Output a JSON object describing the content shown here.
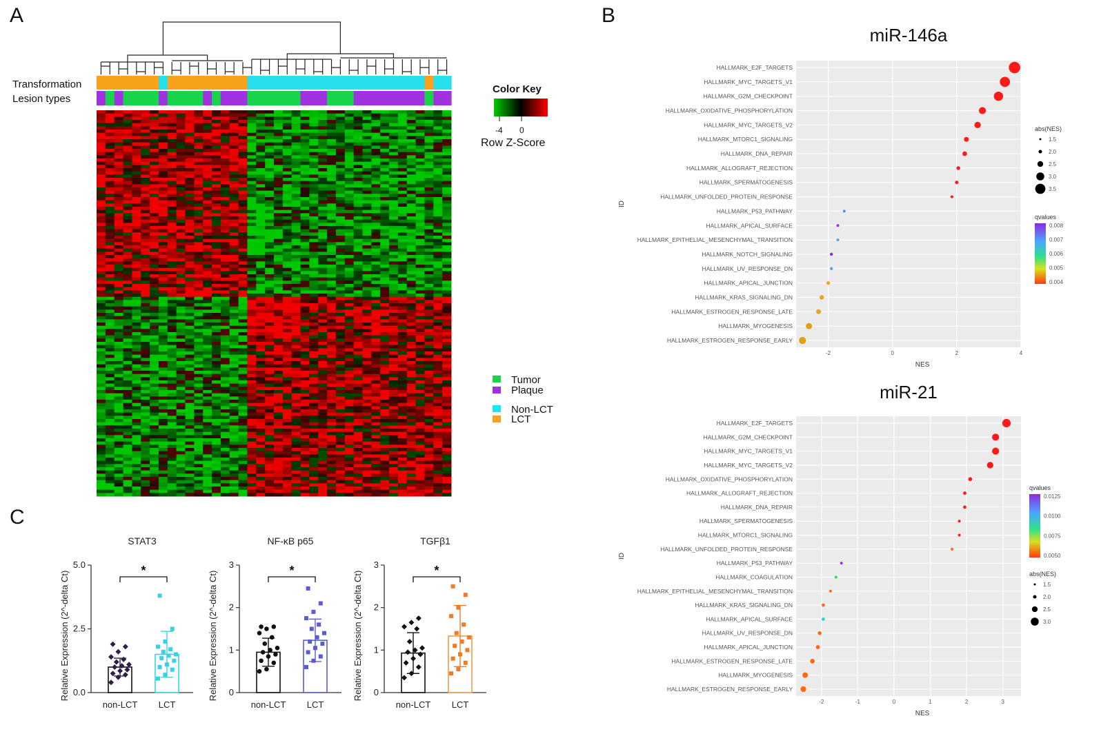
{
  "panels": {
    "a": "A",
    "b": "B",
    "c": "C"
  },
  "colors": {
    "tumor": "#19d44a",
    "plaque": "#a033e0",
    "non_lct": "#27e0ee",
    "lct": "#f7a21a",
    "heat_low": "#00b400",
    "heat_mid": "#000000",
    "heat_high": "#ff0000",
    "bar_stat3": "#36d3e8",
    "bar_nfkb": "#5a5ad8",
    "bar_tgfb": "#f29a45",
    "dots_non_lct": "#2c1d4a",
    "dots_tgfb_lct": "#f07a25"
  },
  "chart_data": [
    {
      "type": "heatmap",
      "title": "",
      "annotation_rows": [
        "Transformation",
        "Lesion types"
      ],
      "color_key": {
        "title": "Color Key",
        "tick_labels": [
          "-4",
          "0"
        ],
        "xlabel": "Row Z-Score"
      },
      "legend": [
        {
          "label": "Tumor",
          "color": "#19d44a"
        },
        {
          "label": "Plaque",
          "color": "#a033e0"
        },
        {
          "label": "Non-LCT",
          "color": "#27e0ee"
        },
        {
          "label": "LCT",
          "color": "#f7a21a"
        }
      ],
      "columns": 40,
      "rows": 120,
      "transformation": [
        "LCT",
        "LCT",
        "LCT",
        "LCT",
        "LCT",
        "LCT",
        "LCT",
        "Non-LCT",
        "LCT",
        "LCT",
        "LCT",
        "LCT",
        "LCT",
        "LCT",
        "LCT",
        "LCT",
        "LCT",
        "Non-LCT",
        "Non-LCT",
        "Non-LCT",
        "Non-LCT",
        "Non-LCT",
        "Non-LCT",
        "Non-LCT",
        "Non-LCT",
        "Non-LCT",
        "Non-LCT",
        "Non-LCT",
        "Non-LCT",
        "Non-LCT",
        "Non-LCT",
        "Non-LCT",
        "Non-LCT",
        "Non-LCT",
        "Non-LCT",
        "Non-LCT",
        "Non-LCT",
        "LCT",
        "Non-LCT",
        "Non-LCT"
      ],
      "lesion_types": [
        "Plaque",
        "Tumor",
        "Plaque",
        "Tumor",
        "Tumor",
        "Tumor",
        "Tumor",
        "Plaque",
        "Tumor",
        "Tumor",
        "Tumor",
        "Tumor",
        "Plaque",
        "Tumor",
        "Plaque",
        "Plaque",
        "Plaque",
        "Tumor",
        "Tumor",
        "Tumor",
        "Tumor",
        "Tumor",
        "Tumor",
        "Plaque",
        "Plaque",
        "Plaque",
        "Tumor",
        "Tumor",
        "Tumor",
        "Plaque",
        "Plaque",
        "Plaque",
        "Plaque",
        "Plaque",
        "Plaque",
        "Plaque",
        "Plaque",
        "Tumor",
        "Plaque",
        "Plaque"
      ]
    },
    {
      "type": "scatter",
      "title": "miR-146a",
      "xlabel": "NES",
      "ylabel": "ID",
      "xlim": [
        -3.0,
        4.0
      ],
      "x_ticks": [
        "-2",
        "0",
        "2",
        "4"
      ],
      "size_legend": {
        "title": "abs(NES)",
        "labels": [
          "1.5",
          "2.0",
          "2.5",
          "3.0",
          "3.5"
        ]
      },
      "color_legend": {
        "title": "qvalues",
        "labels": [
          "0.008",
          "0.007",
          "0.006",
          "0.005",
          "0.004"
        ]
      },
      "categories": [
        "HALLMARK_E2F_TARGETS",
        "HALLMARK_MYC_TARGETS_V1",
        "HALLMARK_G2M_CHECKPOINT",
        "HALLMARK_OXIDATIVE_PHOSPHORYLATION",
        "HALLMARK_MYC_TARGETS_V2",
        "HALLMARK_MTORC1_SIGNALING",
        "HALLMARK_DNA_REPAIR",
        "HALLMARK_ALLOGRAFT_REJECTION",
        "HALLMARK_SPERMATOGENESIS",
        "HALLMARK_UNFOLDED_PROTEIN_RESPONSE",
        "HALLMARK_P53_PATHWAY",
        "HALLMARK_APICAL_SURFACE",
        "HALLMARK_EPITHELIAL_MESENCHYMAL_TRANSITION",
        "HALLMARK_NOTCH_SIGNALING",
        "HALLMARK_UV_RESPONSE_DN",
        "HALLMARK_APICAL_JUNCTION",
        "HALLMARK_KRAS_SIGNALING_DN",
        "HALLMARK_ESTROGEN_RESPONSE_LATE",
        "HALLMARK_MYOGENESIS",
        "HALLMARK_ESTROGEN_RESPONSE_EARLY"
      ],
      "values": [
        3.8,
        3.5,
        3.3,
        2.8,
        2.65,
        2.3,
        2.25,
        2.05,
        2.0,
        1.85,
        -1.5,
        -1.7,
        -1.7,
        -1.9,
        -1.9,
        -2.0,
        -2.2,
        -2.3,
        -2.6,
        -2.8
      ],
      "colors": [
        "#ff1a1a",
        "#ff1a1a",
        "#ff1a1a",
        "#ff1a1a",
        "#ff1a1a",
        "#ff1a1a",
        "#ff1a1a",
        "#ff1a1a",
        "#ff1a1a",
        "#ff1a1a",
        "#4f8dff",
        "#9b30f0",
        "#5aa0f5",
        "#8a2be2",
        "#5aa0f5",
        "#f0a020",
        "#e8a51d",
        "#e8a51d",
        "#e0a010",
        "#e0a010"
      ]
    },
    {
      "type": "scatter",
      "title": "miR-21",
      "xlabel": "NES",
      "ylabel": "ID",
      "xlim": [
        -2.7,
        3.5
      ],
      "x_ticks": [
        "-2",
        "-1",
        "0",
        "1",
        "2",
        "3"
      ],
      "size_legend": {
        "title": "abs(NES)",
        "labels": [
          "1.5",
          "2.0",
          "2.5",
          "3.0"
        ]
      },
      "color_legend": {
        "title": "qvalues",
        "labels": [
          "0.0125",
          "0.0100",
          "0.0075",
          "0.0050"
        ]
      },
      "categories": [
        "HALLMARK_E2F_TARGETS",
        "HALLMARK_G2M_CHECKPOINT",
        "HALLMARK_MYC_TARGETS_V1",
        "HALLMARK_MYC_TARGETS_V2",
        "HALLMARK_OXIDATIVE_PHOSPHORYLATION",
        "HALLMARK_ALLOGRAFT_REJECTION",
        "HALLMARK_DNA_REPAIR",
        "HALLMARK_SPERMATOGENESIS",
        "HALLMARK_MTORC1_SIGNALING",
        "HALLMARK_UNFOLDED_PROTEIN_RESPONSE",
        "HALLMARK_P53_PATHWAY",
        "HALLMARK_COAGULATION",
        "HALLMARK_EPITHELIAL_MESENCHYMAL_TRANSITION",
        "HALLMARK_KRAS_SIGNALING_DN",
        "HALLMARK_APICAL_SURFACE",
        "HALLMARK_UV_RESPONSE_DN",
        "HALLMARK_APICAL_JUNCTION",
        "HALLMARK_ESTROGEN_RESPONSE_LATE",
        "HALLMARK_MYOGENESIS",
        "HALLMARK_ESTROGEN_RESPONSE_EARLY"
      ],
      "values": [
        3.1,
        2.8,
        2.8,
        2.65,
        2.1,
        1.95,
        1.95,
        1.8,
        1.8,
        1.6,
        -1.45,
        -1.6,
        -1.75,
        -1.95,
        -1.95,
        -2.05,
        -2.1,
        -2.25,
        -2.45,
        -2.5
      ],
      "colors": [
        "#ff1a1a",
        "#ff1a1a",
        "#ff1a1a",
        "#ff1a1a",
        "#ff1a1a",
        "#ff1a1a",
        "#ff1a1a",
        "#ff1a1a",
        "#ff1a1a",
        "#ff6a10",
        "#9b30f0",
        "#3ad65a",
        "#ff6a10",
        "#ff6a10",
        "#26d9d9",
        "#ff6a10",
        "#ff6a10",
        "#ff6a10",
        "#ff6a10",
        "#ff6a10"
      ]
    },
    {
      "type": "bar",
      "title": "STAT3",
      "ylabel": "Relative  Expression (2^-delta Ct)",
      "categories": [
        "non-LCT",
        "LCT"
      ],
      "values": [
        1.0,
        1.5
      ],
      "error": [
        0.35,
        0.9
      ],
      "ylim": [
        0,
        5.0
      ],
      "y_ticks": [
        "0.0",
        "2.5",
        "5.0"
      ],
      "significance": "*",
      "points": [
        [
          0.4,
          0.6,
          0.7,
          0.75,
          0.85,
          0.9,
          1.0,
          1.05,
          1.1,
          1.2,
          1.3,
          1.4,
          1.6,
          1.8,
          1.9
        ],
        [
          0.55,
          0.7,
          0.9,
          1.0,
          1.1,
          1.25,
          1.35,
          1.45,
          1.5,
          1.6,
          1.7,
          1.8,
          2.0,
          2.5,
          3.8
        ]
      ]
    },
    {
      "type": "bar",
      "title": "NF-κB p65",
      "ylabel": "Relative  Expression (2^-delta Ct)",
      "categories": [
        "non-LCT",
        "LCT"
      ],
      "values": [
        0.95,
        1.23
      ],
      "error": [
        0.33,
        0.5
      ],
      "ylim": [
        0,
        3
      ],
      "y_ticks": [
        "0",
        "1",
        "2",
        "3"
      ],
      "significance": "*",
      "points": [
        [
          0.5,
          0.55,
          0.7,
          0.75,
          0.85,
          0.9,
          0.95,
          1.0,
          1.05,
          1.15,
          1.3,
          1.4,
          1.5,
          1.55,
          1.55
        ],
        [
          0.6,
          0.75,
          0.85,
          0.95,
          1.05,
          1.15,
          1.2,
          1.3,
          1.4,
          1.5,
          1.6,
          1.75,
          1.9,
          2.1,
          2.45
        ]
      ]
    },
    {
      "type": "bar",
      "title": "TGFβ1",
      "ylabel": "Relative  Expression (2^-delta Ct)",
      "categories": [
        "non-LCT",
        "LCT"
      ],
      "values": [
        0.93,
        1.33
      ],
      "error": [
        0.48,
        0.72
      ],
      "ylim": [
        0,
        3
      ],
      "y_ticks": [
        "0",
        "1",
        "2",
        "3"
      ],
      "significance": "*",
      "points": [
        [
          0.35,
          0.45,
          0.6,
          0.7,
          0.8,
          0.9,
          0.95,
          1.0,
          1.05,
          1.2,
          1.5,
          1.55,
          1.65,
          1.75
        ],
        [
          0.45,
          0.55,
          0.7,
          0.8,
          0.9,
          1.0,
          1.1,
          1.2,
          1.3,
          1.4,
          1.6,
          1.8,
          2.0,
          2.3,
          2.5
        ]
      ]
    }
  ]
}
